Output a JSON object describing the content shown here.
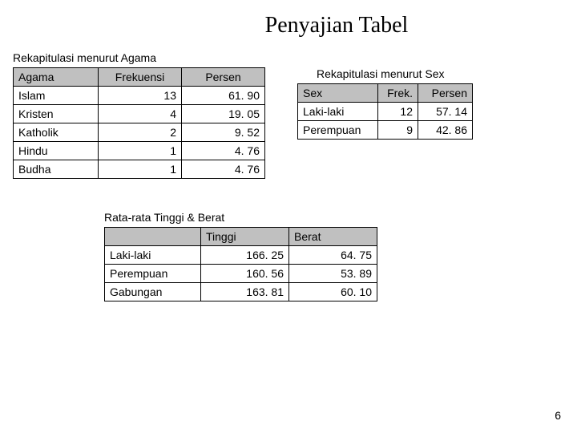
{
  "title": "Penyajian Tabel",
  "pagenum": "6",
  "agama": {
    "caption": "Rekapitulasi menurut Agama",
    "columns": [
      "Agama",
      "Frekuensi",
      "Persen"
    ],
    "rows": [
      [
        "Islam",
        "13",
        "61. 90"
      ],
      [
        "Kristen",
        "4",
        "19. 05"
      ],
      [
        "Katholik",
        "2",
        "9. 52"
      ],
      [
        "Hindu",
        "1",
        "4. 76"
      ],
      [
        "Budha",
        "1",
        "4. 76"
      ]
    ]
  },
  "sex": {
    "caption": "Rekapitulasi menurut Sex",
    "columns": [
      "Sex",
      "Frek.",
      "Persen"
    ],
    "rows": [
      [
        "Laki-laki",
        "12",
        "57. 14"
      ],
      [
        "Perempuan",
        "9",
        "42. 86"
      ]
    ]
  },
  "avg": {
    "caption": "Rata-rata Tinggi & Berat",
    "columns": [
      "",
      "Tinggi",
      "Berat"
    ],
    "rows": [
      [
        "Laki-laki",
        "166. 25",
        "64. 75"
      ],
      [
        "Perempuan",
        "160. 56",
        "53. 89"
      ],
      [
        "Gabungan",
        "163. 81",
        "60. 10"
      ]
    ]
  }
}
